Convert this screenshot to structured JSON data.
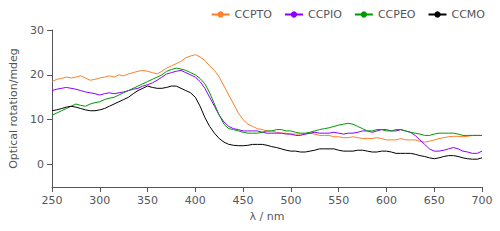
{
  "chart_data": {
    "type": "line",
    "xlabel": "λ / nm",
    "ylabel": "Optical rotation/mdeg",
    "xlim": [
      250,
      700
    ],
    "ylim": [
      -5,
      30
    ],
    "xticks": [
      250,
      300,
      350,
      400,
      450,
      500,
      550,
      600,
      650,
      700
    ],
    "yticks": [
      0,
      10,
      20,
      30
    ],
    "grid": false,
    "legend": "upper right",
    "x": [
      250,
      255,
      260,
      265,
      270,
      275,
      280,
      285,
      290,
      295,
      300,
      305,
      310,
      315,
      320,
      325,
      330,
      335,
      340,
      345,
      350,
      355,
      360,
      365,
      370,
      375,
      380,
      385,
      390,
      395,
      400,
      405,
      410,
      415,
      420,
      425,
      430,
      435,
      440,
      445,
      450,
      455,
      460,
      465,
      470,
      475,
      480,
      485,
      490,
      495,
      500,
      505,
      510,
      515,
      520,
      525,
      530,
      535,
      540,
      545,
      550,
      555,
      560,
      565,
      570,
      575,
      580,
      585,
      590,
      595,
      600,
      605,
      610,
      615,
      620,
      625,
      630,
      635,
      640,
      645,
      650,
      655,
      660,
      665,
      670,
      675,
      680,
      685,
      690,
      695,
      700
    ],
    "series": [
      {
        "name": "CCPTO",
        "color": "#FF7F2A",
        "values": [
          18.5,
          19.0,
          19.2,
          19.5,
          19.3,
          19.5,
          19.8,
          19.3,
          18.8,
          19.0,
          19.3,
          19.5,
          19.8,
          19.5,
          20.0,
          19.8,
          20.2,
          20.5,
          20.8,
          21.0,
          20.8,
          20.5,
          20.2,
          20.8,
          21.5,
          22.0,
          22.5,
          23.0,
          23.8,
          24.2,
          24.5,
          24.0,
          23.2,
          22.0,
          21.0,
          19.5,
          17.5,
          15.5,
          13.5,
          11.5,
          10.0,
          9.0,
          8.5,
          8.0,
          7.8,
          7.5,
          7.5,
          7.2,
          7.0,
          7.0,
          6.8,
          6.8,
          6.8,
          6.8,
          7.0,
          6.8,
          6.5,
          6.5,
          6.5,
          6.2,
          6.2,
          6.0,
          6.0,
          6.2,
          6.0,
          5.8,
          5.8,
          5.8,
          6.0,
          5.8,
          5.5,
          5.5,
          5.5,
          5.8,
          5.5,
          5.5,
          5.5,
          5.2,
          5.0,
          5.2,
          5.5,
          5.8,
          6.0,
          6.2,
          6.3,
          6.3,
          6.2,
          6.3,
          6.5,
          6.5,
          6.5
        ]
      },
      {
        "name": "CCPIO",
        "color": "#8B00FF",
        "values": [
          16.5,
          16.8,
          17.0,
          17.2,
          17.0,
          16.8,
          16.5,
          16.2,
          16.0,
          15.8,
          15.5,
          15.8,
          16.0,
          15.8,
          16.0,
          16.2,
          16.5,
          16.8,
          17.0,
          17.5,
          17.8,
          18.2,
          18.8,
          19.5,
          20.2,
          20.5,
          20.8,
          21.0,
          20.5,
          20.0,
          19.5,
          18.5,
          17.0,
          15.0,
          13.0,
          11.0,
          9.5,
          8.5,
          8.0,
          7.8,
          7.5,
          7.5,
          7.5,
          7.5,
          7.2,
          7.0,
          7.0,
          7.0,
          7.0,
          6.8,
          6.8,
          6.5,
          6.5,
          6.8,
          7.0,
          7.2,
          7.0,
          7.0,
          7.0,
          7.2,
          7.0,
          6.8,
          7.0,
          7.0,
          7.2,
          7.5,
          7.5,
          7.2,
          7.5,
          7.8,
          7.8,
          7.5,
          7.5,
          7.8,
          7.5,
          7.2,
          6.5,
          5.5,
          4.5,
          3.5,
          3.0,
          3.0,
          3.2,
          3.5,
          3.8,
          3.5,
          3.0,
          2.8,
          2.5,
          2.5,
          3.0
        ]
      },
      {
        "name": "CCPEO",
        "color": "#009900",
        "values": [
          11.0,
          11.5,
          12.0,
          12.5,
          13.0,
          13.5,
          13.2,
          13.0,
          13.5,
          13.8,
          14.0,
          14.5,
          14.8,
          15.0,
          15.5,
          16.0,
          16.5,
          17.0,
          17.5,
          18.0,
          18.5,
          19.0,
          19.5,
          20.0,
          20.8,
          21.2,
          21.5,
          21.3,
          21.0,
          20.5,
          20.0,
          19.2,
          18.0,
          16.0,
          13.5,
          11.0,
          9.0,
          8.0,
          7.8,
          7.5,
          7.2,
          7.0,
          7.0,
          7.0,
          7.2,
          7.5,
          7.5,
          7.8,
          7.8,
          7.5,
          7.5,
          7.2,
          7.0,
          7.0,
          7.2,
          7.5,
          7.8,
          8.0,
          8.2,
          8.5,
          8.8,
          9.0,
          9.2,
          9.0,
          8.5,
          8.0,
          7.5,
          7.5,
          7.8,
          7.8,
          7.5,
          7.5,
          7.8,
          7.8,
          7.5,
          7.2,
          7.0,
          6.8,
          6.5,
          6.5,
          6.8,
          7.0,
          7.0,
          7.0,
          7.0,
          6.8,
          6.5,
          6.5,
          6.5,
          6.5,
          6.5
        ]
      },
      {
        "name": "CCMO",
        "color": "#000000",
        "values": [
          12.0,
          12.2,
          12.5,
          12.8,
          13.0,
          12.8,
          12.5,
          12.2,
          12.0,
          12.0,
          12.2,
          12.5,
          13.0,
          13.5,
          14.0,
          14.5,
          15.0,
          15.8,
          16.5,
          17.0,
          17.5,
          17.2,
          17.0,
          17.0,
          17.2,
          17.5,
          17.5,
          17.0,
          16.5,
          16.0,
          15.0,
          13.0,
          10.5,
          8.5,
          7.0,
          5.8,
          5.0,
          4.5,
          4.3,
          4.2,
          4.2,
          4.3,
          4.5,
          4.5,
          4.5,
          4.3,
          4.0,
          3.8,
          3.5,
          3.2,
          3.0,
          3.0,
          2.8,
          2.8,
          3.0,
          3.2,
          3.5,
          3.5,
          3.5,
          3.5,
          3.2,
          3.0,
          3.0,
          3.0,
          3.2,
          3.2,
          3.0,
          2.8,
          2.8,
          3.0,
          3.0,
          2.8,
          2.5,
          2.5,
          2.5,
          2.5,
          2.3,
          2.0,
          1.8,
          1.5,
          1.3,
          1.5,
          1.8,
          2.0,
          2.0,
          1.8,
          1.5,
          1.3,
          1.2,
          1.2,
          1.5
        ]
      }
    ]
  }
}
